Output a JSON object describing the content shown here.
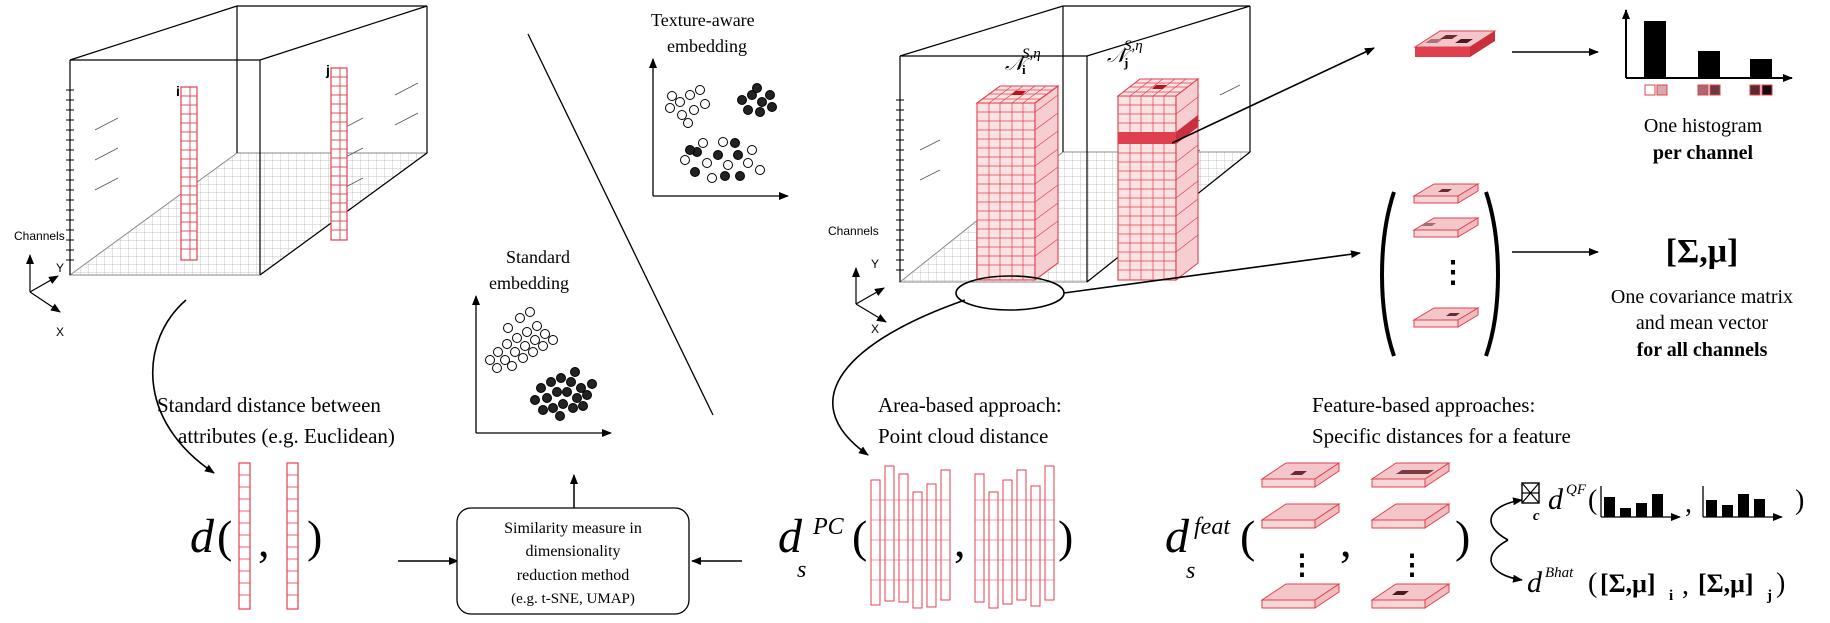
{
  "left_panel": {
    "axis_channels": "Channels",
    "axis_y": "Y",
    "axis_x": "X",
    "pixel_i": "i",
    "pixel_j": "j",
    "distance_line1": "Standard distance between",
    "distance_line2": "attributes (e.g. Euclidean)",
    "d_symbol": "d",
    "comma": ",",
    "open_paren": "(",
    "close_paren": ")"
  },
  "middle_panel": {
    "texture_title_line1": "Texture-aware",
    "texture_title_line2": "embedding",
    "standard_title_line1": "Standard",
    "standard_title_line2": "embedding",
    "similarity_line1": "Similarity measure in",
    "similarity_line2": "dimensionality",
    "similarity_line3": "reduction method",
    "similarity_line4": "(e.g. t-SNE, UMAP)"
  },
  "right_panel": {
    "axis_channels": "Channels",
    "axis_y": "Y",
    "axis_x": "X",
    "neigh_script": "𝒩",
    "neigh_sup": "S,η",
    "neigh_sub_i": "i",
    "neigh_sub_j": "j",
    "histogram_caption_line1": "One histogram",
    "histogram_caption_line2": "per channel",
    "cov_symbol": "[Σ,μ]",
    "cov_caption_line1": "One covariance matrix",
    "cov_caption_line2": "and mean vector",
    "cov_caption_line3": "for all channels",
    "area_line1": "Area-based approach:",
    "area_line2": "Point cloud distance",
    "feature_line1": "Feature-based approaches:",
    "feature_line2": "Specific distances for a feature",
    "dpc_d": "d",
    "dpc_sub": "s",
    "dpc_sup": "PC",
    "dfeat_d": "d",
    "dfeat_sub": "s",
    "dfeat_sup": "feat",
    "qf_sup": "QF",
    "qf_sub": "c",
    "bhat_sup": "Bhat",
    "bhat_arg_i": "[Σ,μ]",
    "bhat_sub_i": "i",
    "bhat_arg_j": "[Σ,μ]",
    "bhat_sub_j": "j",
    "ellipsis": "⋮"
  },
  "colors": {
    "accent_red": "#e0404e",
    "light_red": "#f7d6d8",
    "grid_gray": "#9a9a9a",
    "ink": "#000000"
  }
}
